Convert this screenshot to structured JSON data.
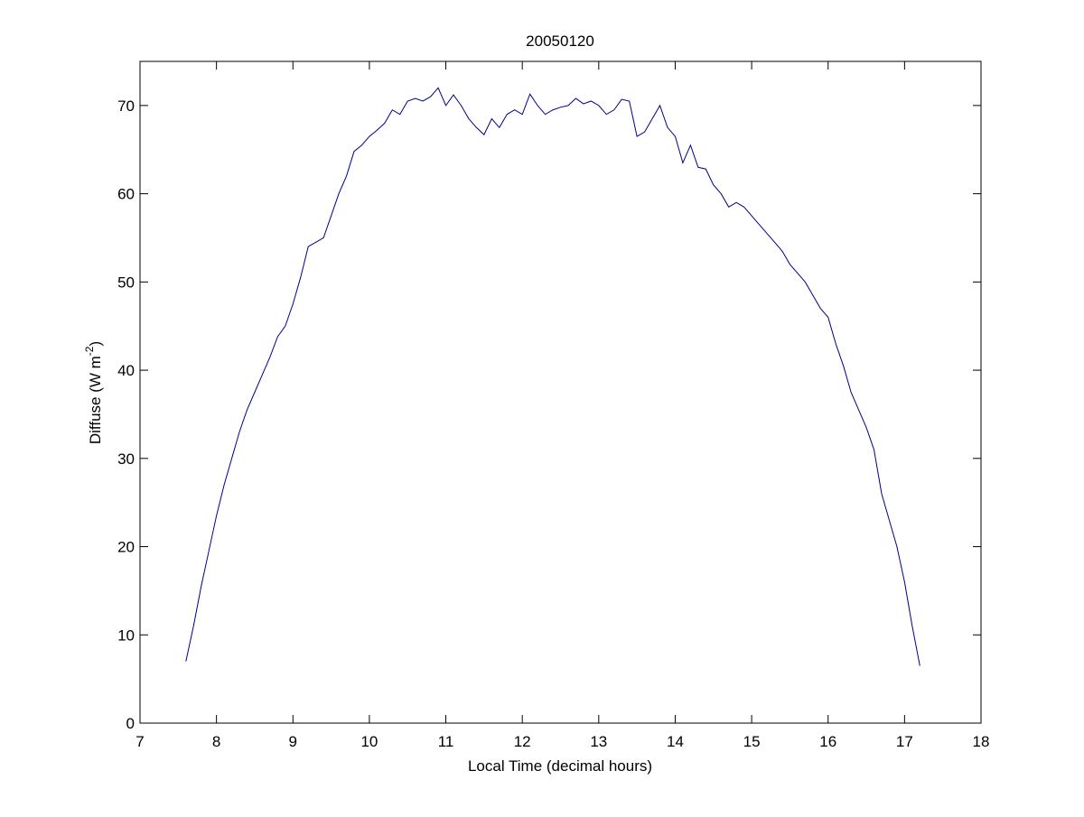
{
  "chart_data": {
    "type": "line",
    "title": "20050120",
    "xlabel": "Local Time (decimal hours)",
    "ylabel": [
      "Diffuse (W m",
      "-2",
      ")"
    ],
    "x": [
      7.6,
      7.7,
      7.8,
      7.9,
      8.0,
      8.1,
      8.2,
      8.3,
      8.4,
      8.5,
      8.6,
      8.7,
      8.8,
      8.9,
      9.0,
      9.1,
      9.2,
      9.3,
      9.4,
      9.5,
      9.6,
      9.7,
      9.8,
      9.9,
      10.0,
      10.1,
      10.2,
      10.3,
      10.4,
      10.5,
      10.6,
      10.7,
      10.8,
      10.9,
      11.0,
      11.1,
      11.2,
      11.3,
      11.4,
      11.5,
      11.6,
      11.7,
      11.8,
      11.9,
      12.0,
      12.1,
      12.2,
      12.3,
      12.4,
      12.5,
      12.6,
      12.7,
      12.8,
      12.9,
      13.0,
      13.1,
      13.2,
      13.3,
      13.4,
      13.5,
      13.6,
      13.7,
      13.8,
      13.9,
      14.0,
      14.1,
      14.2,
      14.3,
      14.4,
      14.5,
      14.6,
      14.7,
      14.8,
      14.9,
      15.0,
      15.1,
      15.2,
      15.3,
      15.4,
      15.5,
      15.6,
      15.7,
      15.8,
      15.9,
      16.0,
      16.1,
      16.2,
      16.3,
      16.4,
      16.5,
      16.6,
      16.7,
      16.8,
      16.9,
      17.0,
      17.1,
      17.2
    ],
    "series": [
      {
        "color": "#00008b",
        "values": [
          7,
          11,
          15.5,
          19.5,
          23.5,
          27,
          30,
          33,
          35.5,
          37.5,
          39.5,
          41.5,
          43.8,
          45,
          47.5,
          50.5,
          54,
          54.5,
          55,
          57.5,
          60,
          62,
          64.8,
          65.5,
          66.5,
          67.2,
          68,
          69.5,
          69,
          70.5,
          70.8,
          70.5,
          71,
          72,
          70,
          71.2,
          70,
          68.5,
          67.5,
          66.7,
          68.5,
          67.5,
          69,
          69.5,
          69,
          71.3,
          70,
          69,
          69.5,
          69.8,
          70,
          70.8,
          70.2,
          70.5,
          70,
          69,
          69.5,
          70.7,
          70.5,
          66.5,
          67,
          68.5,
          70,
          67.5,
          66.5,
          63.5,
          65.5,
          63,
          62.8,
          61,
          60,
          58.5,
          59,
          58.5,
          57.5,
          56.5,
          55.5,
          54.5,
          53.5,
          52,
          51,
          50,
          48.5,
          47,
          46,
          43,
          40.5,
          37.5,
          35.5,
          33.5,
          31,
          26,
          23,
          20,
          16,
          11,
          6.5
        ]
      }
    ],
    "xlim": [
      7,
      18
    ],
    "xticks": [
      7,
      8,
      9,
      10,
      11,
      12,
      13,
      14,
      15,
      16,
      17,
      18
    ],
    "ylim": [
      0,
      75
    ],
    "yticks": [
      0,
      10,
      20,
      30,
      40,
      50,
      60,
      70
    ]
  }
}
